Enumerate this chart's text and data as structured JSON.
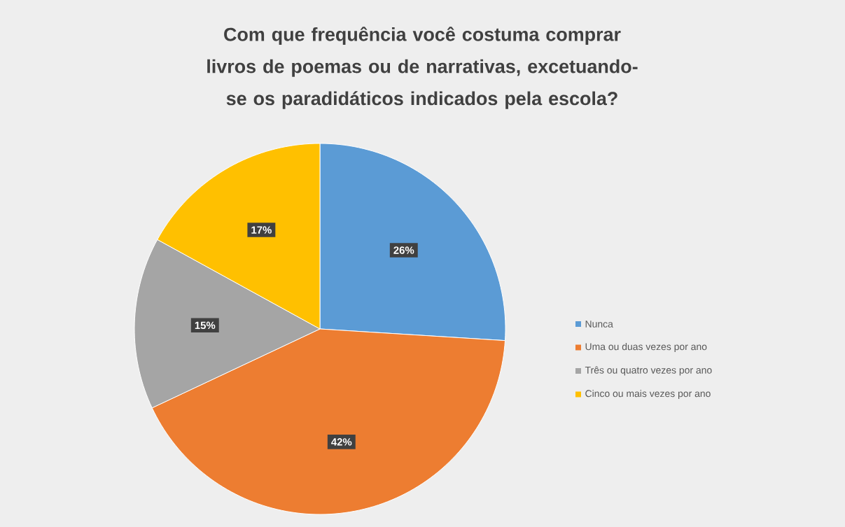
{
  "chart_data": {
    "type": "pie",
    "title": "Com que frequência você costuma comprar livros de poemas ou de narrativas, excetuando-se os paradidáticos indicados pela escola?",
    "categories": [
      "Nunca",
      "Uma ou duas vezes por ano",
      "Três ou quatro vezes por ano",
      "Cinco ou mais vezes por ano"
    ],
    "values": [
      26,
      42,
      15,
      17
    ],
    "value_labels": [
      "26%",
      "42%",
      "15%",
      "17%"
    ],
    "colors": [
      "#5b9bd5",
      "#ed7d31",
      "#a5a5a5",
      "#ffc000"
    ],
    "legend": "right"
  }
}
